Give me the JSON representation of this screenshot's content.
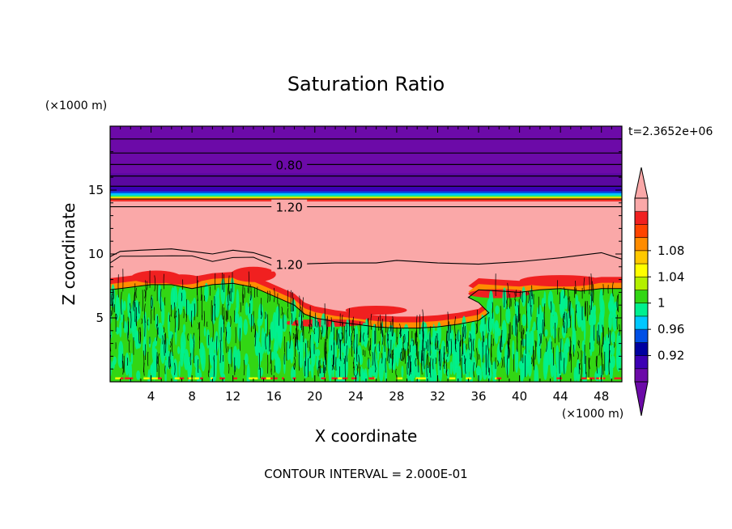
{
  "chart_data": {
    "type": "contourf",
    "title": "Saturation Ratio",
    "xlabel": "X coordinate",
    "ylabel": "Z coordinate",
    "x_unit": "(×1000 m)",
    "y_unit": "(×1000 m)",
    "time_label": "t=2.3652e+06",
    "footer": "CONTOUR INTERVAL = 2.000E-01",
    "xlim": [
      0,
      50
    ],
    "ylim": [
      0,
      20
    ],
    "x_ticks": [
      4,
      8,
      12,
      16,
      20,
      24,
      28,
      32,
      36,
      40,
      44,
      48
    ],
    "y_ticks": [
      5,
      10,
      15
    ],
    "contour_labels": [
      {
        "text": "0.80",
        "x": 17.5,
        "z": 17.0
      },
      {
        "text": "1.20",
        "x": 17.5,
        "z": 13.7
      },
      {
        "text": "1.20",
        "x": 17.5,
        "z": 9.2
      }
    ],
    "colorbar": {
      "levels": [
        0.92,
        0.96,
        1,
        1.04,
        1.08
      ],
      "bands": [
        {
          "color": "#6c0aa8"
        },
        {
          "color": "#3c00b4"
        },
        {
          "color": "#0000a0"
        },
        {
          "color": "#0050e6"
        },
        {
          "color": "#00c8ff"
        },
        {
          "color": "#00f090"
        },
        {
          "color": "#32d614"
        },
        {
          "color": "#b4f000"
        },
        {
          "color": "#ffff00"
        },
        {
          "color": "#ffc800"
        },
        {
          "color": "#ff8c00"
        },
        {
          "color": "#ff4400"
        },
        {
          "color": "#f02020"
        },
        {
          "color": "#faa8a8"
        }
      ]
    },
    "colors": {
      "upper_layer": "#6c0aa8",
      "cloud_high": "#faa8a8",
      "boundary_layer": "#32d614",
      "near_one": "#00f090",
      "edge_red": "#f02020",
      "edge_orange": "#ff8c00"
    }
  }
}
